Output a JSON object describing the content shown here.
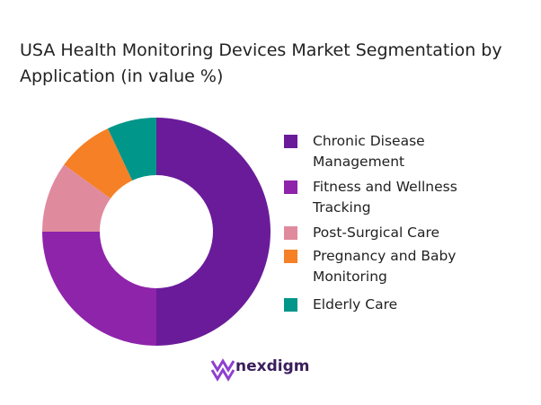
{
  "chart_data": {
    "type": "donut",
    "title": "USA Health Monitoring Devices Market Segmentation by Application (in value %)",
    "categories": [
      "Chronic Disease Management",
      "Fitness and Wellness Tracking",
      "Post-Surgical Care",
      "Pregnancy and Baby Monitoring",
      "Elderly Care"
    ],
    "values": [
      50,
      25,
      10,
      8,
      7
    ],
    "colors": [
      "#6a1b9a",
      "#8e24aa",
      "#e08a9e",
      "#f58025",
      "#00968a"
    ]
  },
  "brand": "nexdigm"
}
